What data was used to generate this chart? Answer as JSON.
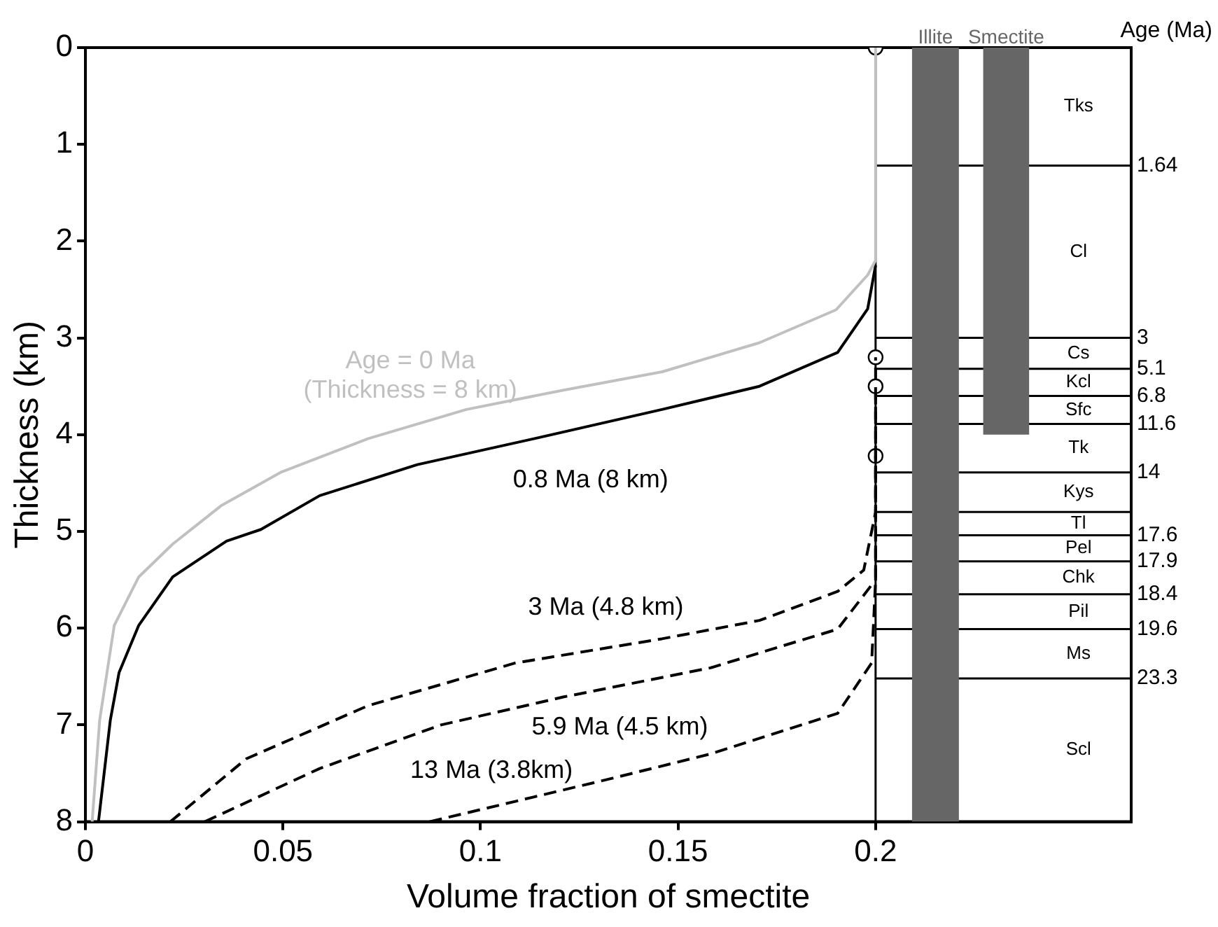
{
  "chart_data": {
    "type": "line",
    "xlabel": "Volume fraction of smectite",
    "ylabel": "Thickness (km)",
    "xlim": [
      0,
      0.2647
    ],
    "xticks": [
      0,
      0.05,
      0.1,
      0.15,
      0.2
    ],
    "ylim": [
      8,
      0
    ],
    "yticks": [
      0,
      1,
      2,
      3,
      4,
      5,
      6,
      7,
      8
    ],
    "grid": false,
    "legend": false,
    "series": [
      {
        "name": "Age = 0 Ma\n(Thickness = 8 km)",
        "color": "#c0c0c0",
        "line_style": "solid",
        "marker": "none",
        "x": [
          0.0017,
          0.0036,
          0.0073,
          0.0135,
          0.0221,
          0.0345,
          0.0494,
          0.0716,
          0.0964,
          0.121,
          0.146,
          0.1706,
          0.19,
          0.198,
          0.2,
          0.2
        ],
        "values": [
          8,
          6.95,
          5.97,
          5.47,
          5.13,
          4.73,
          4.39,
          4.04,
          3.74,
          3.54,
          3.35,
          3.05,
          2.71,
          2.35,
          2.2,
          0
        ]
      },
      {
        "name": "0.8 Ma (8 km)",
        "color": "#000000",
        "line_style": "solid",
        "marker": "none",
        "x": [
          0.0033,
          0.0063,
          0.0085,
          0.0135,
          0.0221,
          0.0357,
          0.0444,
          0.0593,
          0.084,
          0.1137,
          0.1459,
          0.1706,
          0.1904,
          0.198,
          0.2
        ],
        "values": [
          8,
          6.95,
          6.46,
          5.97,
          5.47,
          5.1,
          4.98,
          4.63,
          4.31,
          4.04,
          3.74,
          3.5,
          3.15,
          2.7,
          2.25
        ]
      },
      {
        "name": "3 Ma (4.8 km)",
        "color": "#000000",
        "line_style": "dashed",
        "marker": "none",
        "x": [
          0.0215,
          0.0407,
          0.0716,
          0.1088,
          0.1459,
          0.1706,
          0.1904,
          0.197,
          0.2,
          0.2
        ],
        "values": [
          8,
          7.35,
          6.8,
          6.36,
          6.11,
          5.92,
          5.62,
          5.4,
          4.8,
          3.2
        ]
      },
      {
        "name": "5.9 Ma (4.5 km)",
        "color": "#000000",
        "line_style": "dashed",
        "marker": "none",
        "x": [
          0.0302,
          0.0593,
          0.09,
          0.1211,
          0.1582,
          0.1904,
          0.2,
          0.2
        ],
        "values": [
          8,
          7.45,
          7,
          6.71,
          6.41,
          6.01,
          5.5,
          3.5
        ]
      },
      {
        "name": "13 Ma (3.8km)",
        "color": "#000000",
        "line_style": "dashed",
        "marker": "none",
        "x": [
          0.0871,
          0.1088,
          0.1335,
          0.1582,
          0.1904,
          0.199,
          0.2,
          0.2
        ],
        "values": [
          8,
          7.79,
          7.55,
          7.3,
          6.88,
          6.36,
          5.5,
          4.22
        ]
      },
      {
        "type": "area",
        "name": "Illite",
        "color": "#666666",
        "x": [
          0.2092,
          0.2211
        ],
        "values": [
          8,
          8
        ]
      },
      {
        "type": "area",
        "name": "Smectite",
        "color": "#666666",
        "x": [
          0.2272,
          0.2389
        ],
        "values": [
          4,
          4
        ]
      },
      {
        "type": "scatter",
        "color": "#000000",
        "marker": "circle",
        "x": [
          0.2,
          0.2,
          0.2,
          0.2
        ],
        "values": [
          0,
          3.2,
          3.5,
          4.22
        ]
      }
    ],
    "ref_lines": [
      {
        "axis": "x",
        "value": 0.2
      },
      {
        "axis": "y",
        "value": 1.22
      },
      {
        "axis": "y",
        "value": 3.0
      },
      {
        "axis": "y",
        "value": 3.32
      },
      {
        "axis": "y",
        "value": 3.6
      },
      {
        "axis": "y",
        "value": 3.89
      },
      {
        "axis": "y",
        "value": 4.39
      },
      {
        "axis": "y",
        "value": 4.8
      },
      {
        "axis": "y",
        "value": 5.04
      },
      {
        "axis": "y",
        "value": 5.31
      },
      {
        "axis": "y",
        "value": 5.65
      },
      {
        "axis": "y",
        "value": 6.01
      },
      {
        "axis": "y",
        "value": 6.52
      }
    ],
    "annotations": [
      "Age (Ma)",
      "1.64",
      "3",
      "5.1",
      "6.8",
      "11.6",
      "14",
      "17.6",
      "17.9",
      "18.4",
      "19.6",
      "23.3",
      "Tks",
      "Cl",
      "Cs",
      "Kcl",
      "Sfc",
      "Tk",
      "Kys",
      "Tl",
      "Pel",
      "Chk",
      "Pil",
      "Ms",
      "Scl"
    ]
  }
}
